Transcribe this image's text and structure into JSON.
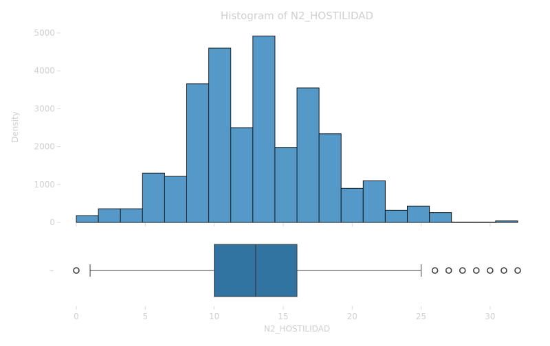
{
  "chart_data": {
    "type": "histogram",
    "title": "Histogram of N2_HOSTILIDAD",
    "xlabel": "N2_HOSTILIDAD",
    "ylabel": "Density",
    "xlim": [
      0,
      32
    ],
    "ylim": [
      0,
      5200
    ],
    "x_ticks": [
      0,
      5,
      10,
      15,
      20,
      25,
      30
    ],
    "y_ticks": [
      0,
      1000,
      2000,
      3000,
      4000,
      5000
    ],
    "bin_edges": [
      0,
      1.6,
      3.2,
      4.8,
      6.4,
      8.0,
      9.6,
      11.2,
      12.8,
      14.4,
      16.0,
      17.6,
      19.2,
      20.8,
      22.4,
      24.0,
      25.6,
      27.2,
      28.8,
      30.4,
      32.0
    ],
    "counts": [
      180,
      360,
      360,
      1300,
      1220,
      3660,
      4600,
      2500,
      4920,
      1980,
      3550,
      2340,
      900,
      1100,
      320,
      430,
      260,
      10,
      10,
      40
    ],
    "bar_color": "#5499c7",
    "boxplot": {
      "min_whisker": 1,
      "q1": 10,
      "median": 13,
      "q3": 16,
      "max_whisker": 25,
      "outliers": [
        0,
        26,
        27,
        28,
        29,
        30,
        31,
        32
      ],
      "box_color": "#3274a1",
      "y_tick_label": "-"
    }
  }
}
